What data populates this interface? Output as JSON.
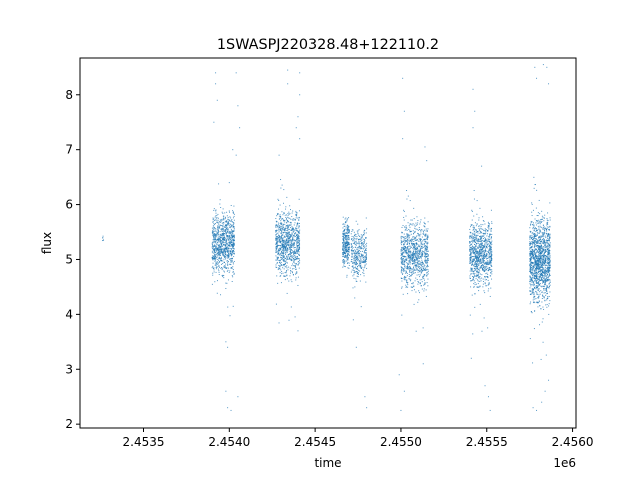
{
  "chart_data": {
    "type": "scatter",
    "title": "1SWASPJ220328.48+122110.2",
    "xlabel": "time",
    "ylabel": "flux",
    "x_offset_label": "1e6",
    "xlim": [
      2.45313,
      2.45602
    ],
    "ylim": [
      1.93,
      8.67
    ],
    "x_ticks": [
      2.4535,
      2.454,
      2.4545,
      2.455,
      2.4555,
      2.456
    ],
    "x_tick_labels": [
      "2.4535",
      "2.4540",
      "2.4545",
      "2.4550",
      "2.4555",
      "2.4560"
    ],
    "y_ticks": [
      2,
      3,
      4,
      5,
      6,
      7,
      8
    ],
    "y_tick_labels": [
      "2",
      "3",
      "4",
      "5",
      "6",
      "7",
      "8"
    ],
    "grid": false,
    "legend": "none",
    "marker_color": "#1f77b4",
    "series": [
      {
        "values_description": "dense observation seasons (time in units of 1e6 days, flux)",
        "clusters": [
          {
            "x_start": 2.45326,
            "x_end": 2.45327,
            "y_mean": 5.3,
            "y_spread": 0.25,
            "n": 6
          },
          {
            "x_start": 2.4539,
            "x_end": 2.45403,
            "y_mean": 5.3,
            "y_spread": 0.8,
            "n": 900
          },
          {
            "x_start": 2.45427,
            "x_end": 2.45441,
            "y_mean": 5.3,
            "y_spread": 0.85,
            "n": 900
          },
          {
            "x_start": 2.45466,
            "x_end": 2.4547,
            "y_mean": 5.3,
            "y_spread": 0.6,
            "n": 300
          },
          {
            "x_start": 2.45471,
            "x_end": 2.4548,
            "y_mean": 5.1,
            "y_spread": 0.7,
            "n": 350
          },
          {
            "x_start": 2.455,
            "x_end": 2.45516,
            "y_mean": 5.1,
            "y_spread": 0.85,
            "n": 900
          },
          {
            "x_start": 2.4554,
            "x_end": 2.45553,
            "y_mean": 5.1,
            "y_spread": 0.85,
            "n": 900
          },
          {
            "x_start": 2.45575,
            "x_end": 2.45587,
            "y_mean": 5.0,
            "y_spread": 1.1,
            "n": 1400
          }
        ],
        "outliers": [
          [
            2.45392,
            8.4
          ],
          [
            2.45392,
            8.2
          ],
          [
            2.45393,
            7.9
          ],
          [
            2.45391,
            7.5
          ],
          [
            2.454,
            6.4
          ],
          [
            2.45398,
            3.5
          ],
          [
            2.45399,
            3.4
          ],
          [
            2.45398,
            2.6
          ],
          [
            2.45399,
            2.3
          ],
          [
            2.45401,
            2.25
          ],
          [
            2.45404,
            8.4
          ],
          [
            2.45405,
            7.8
          ],
          [
            2.45406,
            7.4
          ],
          [
            2.45404,
            6.9
          ],
          [
            2.45402,
            7.0
          ],
          [
            2.45405,
            2.5
          ],
          [
            2.45434,
            8.45
          ],
          [
            2.45434,
            8.2
          ],
          [
            2.45441,
            8.4
          ],
          [
            2.45441,
            8.0
          ],
          [
            2.4544,
            7.6
          ],
          [
            2.45439,
            7.4
          ],
          [
            2.45441,
            7.2
          ],
          [
            2.45429,
            6.9
          ],
          [
            2.4544,
            3.7
          ],
          [
            2.45479,
            2.5
          ],
          [
            2.4548,
            2.3
          ],
          [
            2.45474,
            3.4
          ],
          [
            2.45501,
            8.3
          ],
          [
            2.45502,
            7.7
          ],
          [
            2.45501,
            7.2
          ],
          [
            2.45499,
            2.9
          ],
          [
            2.45502,
            2.6
          ],
          [
            2.455,
            2.25
          ],
          [
            2.45513,
            3.1
          ],
          [
            2.45515,
            6.8
          ],
          [
            2.45514,
            7.05
          ],
          [
            2.45542,
            8.1
          ],
          [
            2.45543,
            7.7
          ],
          [
            2.45542,
            7.4
          ],
          [
            2.45541,
            3.2
          ],
          [
            2.45549,
            2.7
          ],
          [
            2.45551,
            2.5
          ],
          [
            2.45552,
            2.25
          ],
          [
            2.45547,
            6.7
          ],
          [
            2.45578,
            8.5
          ],
          [
            2.45579,
            8.3
          ],
          [
            2.45583,
            8.55
          ],
          [
            2.45585,
            8.5
          ],
          [
            2.45586,
            8.2
          ],
          [
            2.45577,
            2.3
          ],
          [
            2.45579,
            2.25
          ],
          [
            2.45582,
            2.4
          ],
          [
            2.45584,
            2.6
          ],
          [
            2.45586,
            2.8
          ]
        ]
      }
    ]
  }
}
